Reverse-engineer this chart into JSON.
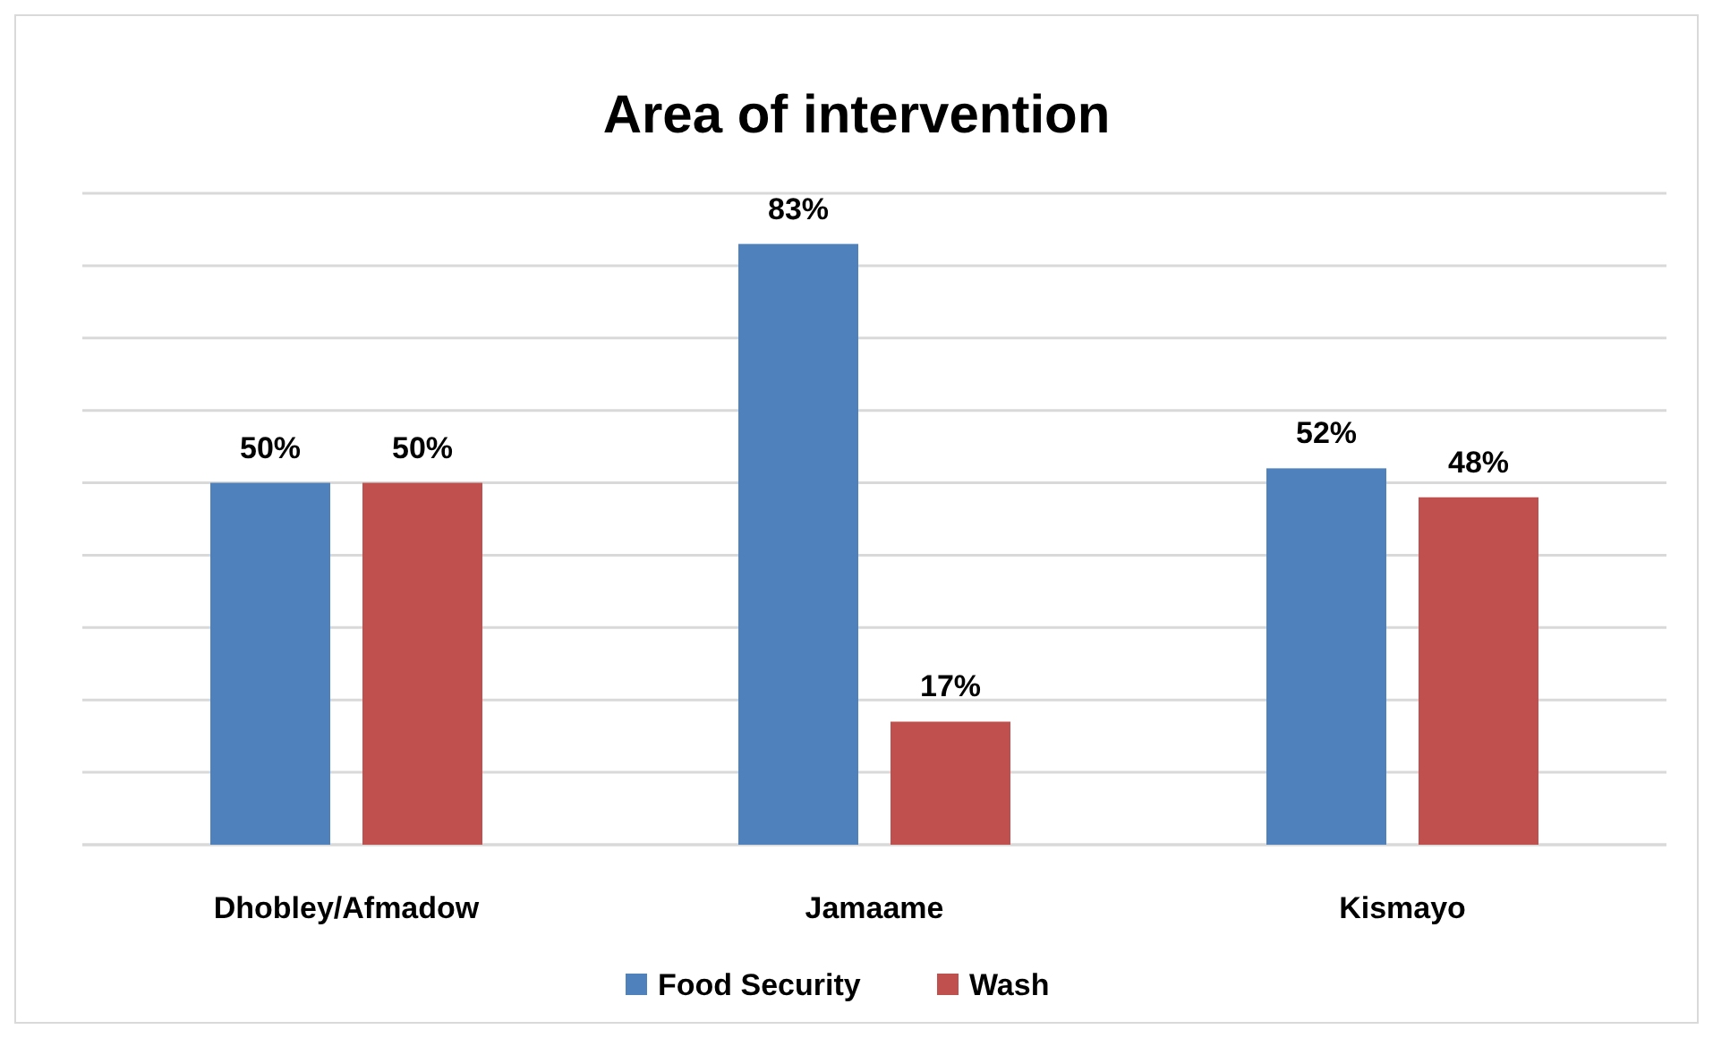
{
  "chart_data": {
    "type": "bar",
    "title": "Area of intervention",
    "categories": [
      "Dhobley/Afmadow",
      "Jamaame",
      "Kismayo"
    ],
    "series": [
      {
        "name": "Food Security",
        "color": "#4f81bd",
        "values": [
          50,
          83,
          52
        ],
        "value_labels": [
          "50%",
          "83%",
          "52%"
        ]
      },
      {
        "name": "Wash",
        "color": "#c0504d",
        "values": [
          50,
          17,
          48
        ],
        "value_labels": [
          "50%",
          "17%",
          "48%"
        ]
      }
    ],
    "ylim": [
      0,
      90
    ],
    "yticks": [
      {
        "value": 0,
        "label": null
      },
      {
        "value": 10,
        "label": null
      },
      {
        "value": 20,
        "label": null
      },
      {
        "value": 30,
        "label": null
      },
      {
        "value": 40,
        "label": null
      },
      {
        "value": 50,
        "label": null
      },
      {
        "value": 60,
        "label": null
      },
      {
        "value": 70,
        "label": null
      },
      {
        "value": 80,
        "label": null
      },
      {
        "value": 90,
        "label": null
      }
    ],
    "grid": "y",
    "tick_labels": "x",
    "legend": "bottom"
  }
}
